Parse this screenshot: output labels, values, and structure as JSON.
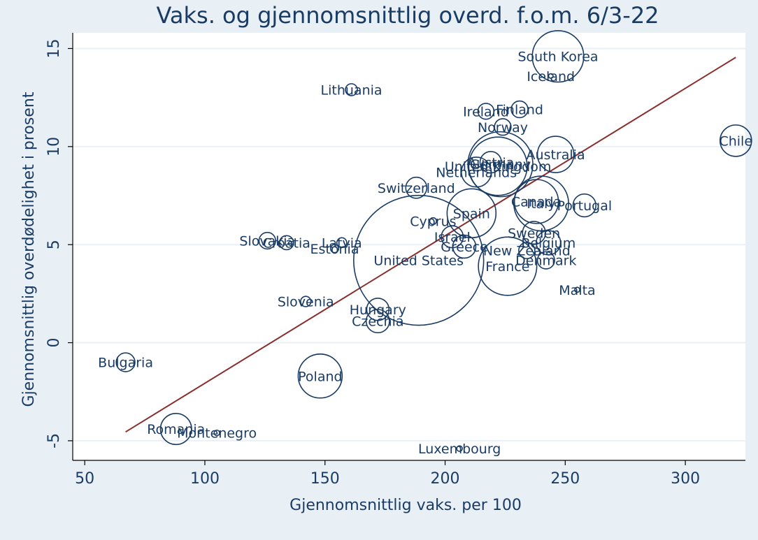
{
  "chart_data": {
    "type": "scatter",
    "title": "Vaks. og gjennomsnittlig overd. f.o.m. 6/3-22",
    "xlabel": "Gjennomsnittlig vaks. per 100",
    "ylabel": "Gjennomsnittlig overdødelighet i prosent",
    "xlim": [
      45,
      325
    ],
    "ylim": [
      -6,
      15.8
    ],
    "xticks": [
      50,
      100,
      150,
      200,
      250,
      300
    ],
    "yticks": [
      -5,
      0,
      5,
      10,
      15
    ],
    "grid": true,
    "marker_size_encoding": "bubble area ~ population",
    "colors": {
      "background": "#e9f0f5",
      "plot_background": "#ffffff",
      "marker": "#1a3c64",
      "fit_line": "#8b2e2e",
      "text": "#1a3c64",
      "grid": "#eaf1f6"
    },
    "fit_line": {
      "x": [
        67,
        321
      ],
      "y": [
        -4.55,
        14.55
      ]
    },
    "points": [
      {
        "label": "South Korea",
        "x": 247,
        "y": 14.6,
        "size": 52
      },
      {
        "label": "Iceland",
        "x": 244,
        "y": 13.6,
        "size": 0.4
      },
      {
        "label": "Lithuania",
        "x": 161,
        "y": 12.9,
        "size": 2.8
      },
      {
        "label": "Finland",
        "x": 231,
        "y": 11.9,
        "size": 5.5
      },
      {
        "label": "Ireland",
        "x": 217,
        "y": 11.8,
        "size": 5
      },
      {
        "label": "Norway",
        "x": 224,
        "y": 11.0,
        "size": 5.4
      },
      {
        "label": "Chile",
        "x": 321,
        "y": 10.3,
        "size": 19.5
      },
      {
        "label": "Australia",
        "x": 246,
        "y": 9.6,
        "size": 26
      },
      {
        "label": "Austria",
        "x": 219,
        "y": 9.2,
        "size": 9
      },
      {
        "label": "Germany",
        "x": 223,
        "y": 9.1,
        "size": 83
      },
      {
        "label": "United Kingdom",
        "x": 222,
        "y": 9.0,
        "size": 67
      },
      {
        "label": "Netherlands",
        "x": 213,
        "y": 8.7,
        "size": 17.5
      },
      {
        "label": "Switzerland",
        "x": 188,
        "y": 7.9,
        "size": 8.7
      },
      {
        "label": "Canada",
        "x": 238,
        "y": 7.2,
        "size": 38
      },
      {
        "label": "Italy",
        "x": 240,
        "y": 7.1,
        "size": 59
      },
      {
        "label": "Portugal",
        "x": 258,
        "y": 7.0,
        "size": 10.3
      },
      {
        "label": "Spain",
        "x": 211,
        "y": 6.6,
        "size": 47
      },
      {
        "label": "Cyprus",
        "x": 195,
        "y": 6.2,
        "size": 0.9
      },
      {
        "label": "Israel",
        "x": 203,
        "y": 5.4,
        "size": 9.4
      },
      {
        "label": "Sweden",
        "x": 237,
        "y": 5.6,
        "size": 10.4
      },
      {
        "label": "Belgium",
        "x": 243,
        "y": 5.1,
        "size": 11.6
      },
      {
        "label": "Greece",
        "x": 208,
        "y": 4.9,
        "size": 10.4
      },
      {
        "label": "New Zealand",
        "x": 234,
        "y": 4.7,
        "size": 5.1
      },
      {
        "label": "Slovakia",
        "x": 126,
        "y": 5.2,
        "size": 5.4
      },
      {
        "label": "Croatia",
        "x": 134,
        "y": 5.1,
        "size": 3.9
      },
      {
        "label": "Latvia",
        "x": 157,
        "y": 5.1,
        "size": 1.9
      },
      {
        "label": "Estonia",
        "x": 154,
        "y": 4.8,
        "size": 1.3
      },
      {
        "label": "United States",
        "x": 189,
        "y": 4.2,
        "size": 332
      },
      {
        "label": "France",
        "x": 226,
        "y": 3.9,
        "size": 67
      },
      {
        "label": "Denmark",
        "x": 242,
        "y": 4.2,
        "size": 5.8
      },
      {
        "label": "Malta",
        "x": 255,
        "y": 2.7,
        "size": 0.5
      },
      {
        "label": "Slovenia",
        "x": 142,
        "y": 2.1,
        "size": 2.1
      },
      {
        "label": "Hungary",
        "x": 172,
        "y": 1.7,
        "size": 9.7
      },
      {
        "label": "Czechia",
        "x": 172,
        "y": 1.1,
        "size": 10.7
      },
      {
        "label": "Bulgaria",
        "x": 67,
        "y": -1.0,
        "size": 6.9
      },
      {
        "label": "Poland",
        "x": 148,
        "y": -1.7,
        "size": 38
      },
      {
        "label": "Romania",
        "x": 88,
        "y": -4.4,
        "size": 19
      },
      {
        "label": "Montenegro",
        "x": 105,
        "y": -4.6,
        "size": 0.6
      },
      {
        "label": "Luxembourg",
        "x": 206,
        "y": -5.4,
        "size": 0.6
      }
    ]
  }
}
